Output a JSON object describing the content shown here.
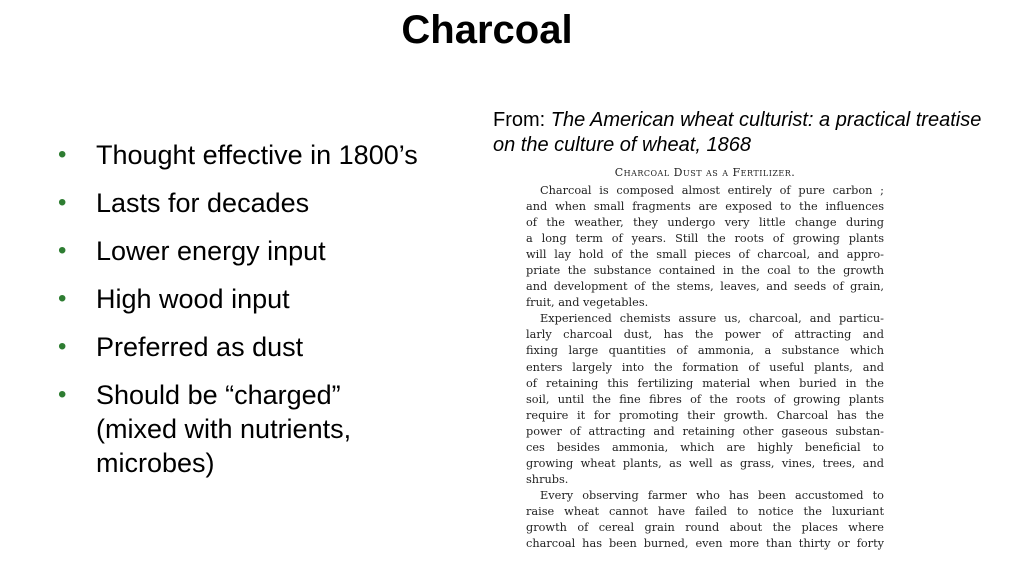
{
  "title": "Charcoal",
  "bullets": [
    "Thought effective in 1800’s",
    "Lasts for decades",
    "Lower energy input",
    "High wood input",
    "Preferred as dust",
    "Should be “charged” (mixed with nutrients, microbes)"
  ],
  "source": {
    "prefix": "From: ",
    "citation": "The American wheat culturist: a practical treatise on the culture of wheat, 1868"
  },
  "scan": {
    "heading": "Charcoal Dust as a Fertilizer.",
    "lines": [
      "Charcoal is composed almost entirely of pure carbon ;",
      "and when small fragments are exposed to the influences",
      "of the weather, they undergo very little change during",
      "a long term of years.  Still the roots of growing plants",
      "will lay hold of the small pieces of charcoal, and appro-",
      "priate the substance contained in the coal to the growth",
      "and development of the stems, leaves, and seeds of grain,",
      "fruit, and vegetables.",
      "Experienced chemists assure us, charcoal, and particu-",
      "larly charcoal dust, has the power of attracting and",
      "fixing large quantities of ammonia, a substance which",
      "enters largely into the formation of useful plants, and",
      "of retaining this fertilizing material when buried in the",
      "soil, until the fine fibres of the roots of growing plants",
      "require it for promoting their growth.  Charcoal has the",
      "power of attracting and retaining other gaseous substan-",
      "ces besides ammonia, which are highly beneficial to",
      "growing wheat plants, as well as grass, vines, trees, and",
      "shrubs.",
      "Every observing farmer who has been accustomed to",
      "raise wheat cannot have failed to notice the luxuriant",
      "growth of cereal grain round about the places where",
      "charcoal has been burned, even more than thirty or forty"
    ]
  },
  "colors": {
    "bullet": "#2e7d32"
  }
}
